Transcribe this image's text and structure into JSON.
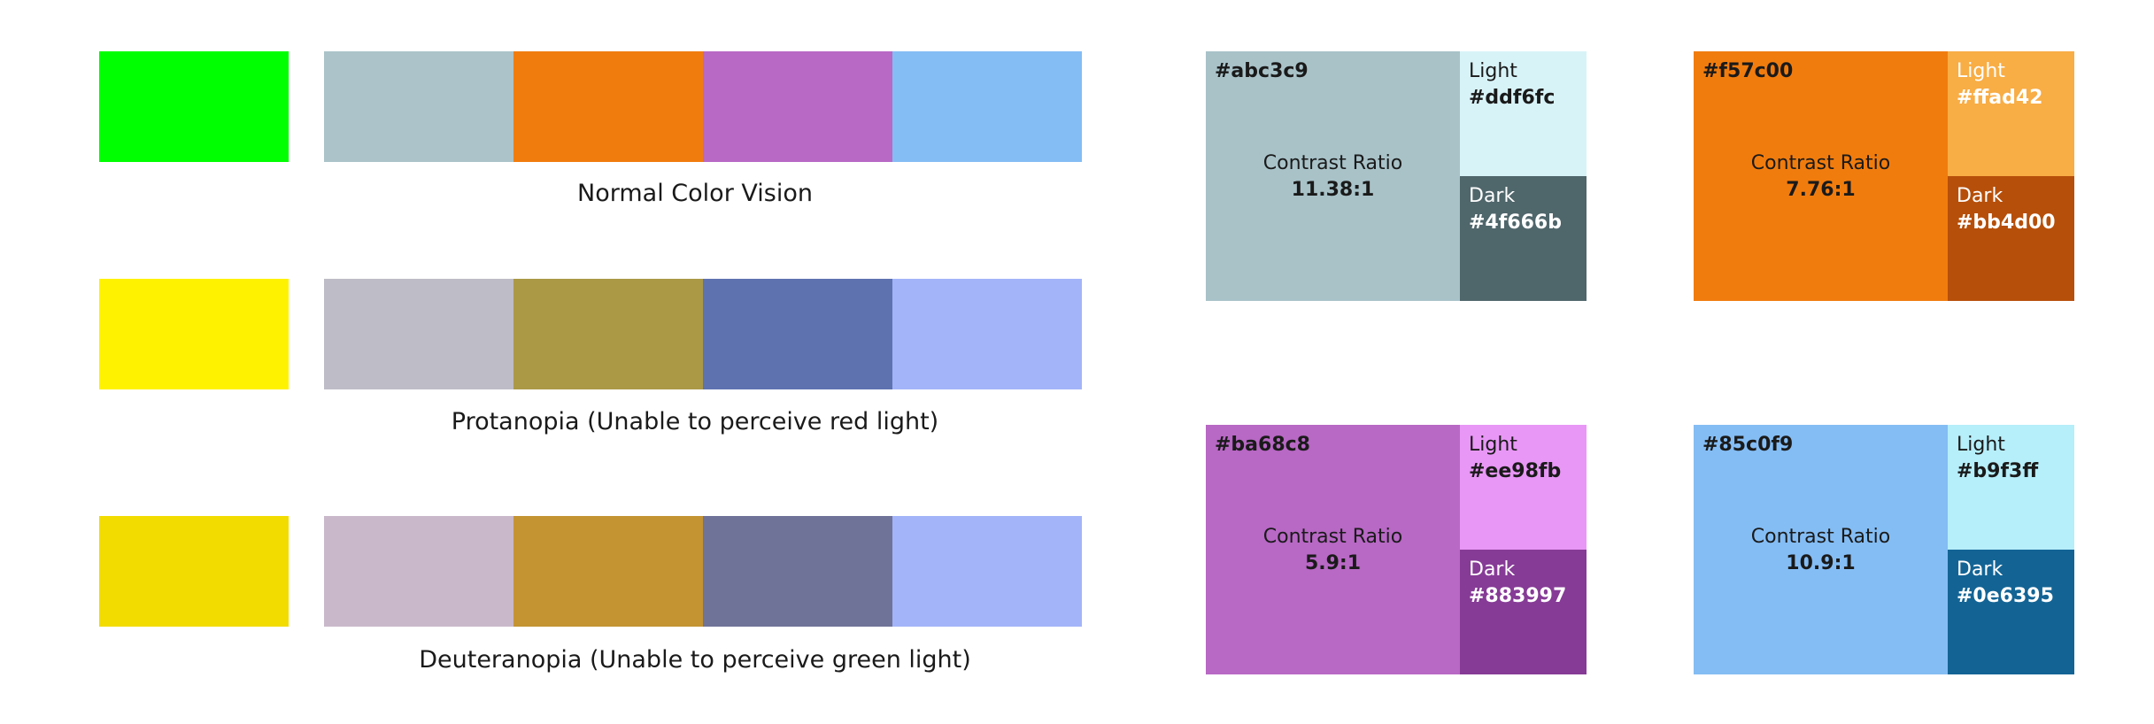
{
  "rows": [
    {
      "label": "Normal Color Vision",
      "accent": "#00ff00",
      "palette": [
        "#abc3c9",
        "#f17c0e",
        "#b868c5",
        "#84bdf4"
      ]
    },
    {
      "label": "Protanopia (Unable to perceive red light)",
      "accent": "#fff200",
      "palette": [
        "#bebcc6",
        "#ab9946",
        "#5e72b0",
        "#a3b4f8"
      ]
    },
    {
      "label": "Deuteranopia (Unable to perceive green light)",
      "accent": "#f2dc00",
      "palette": [
        "#c9b8ca",
        "#c49432",
        "#707398",
        "#a3b4f8"
      ]
    }
  ],
  "cards": [
    {
      "main_hex": "#abc3c9",
      "main_color": "#a8c2c8",
      "ratio_label": "Contrast Ratio",
      "ratio": "11.38:1",
      "light_label": "Light",
      "light_hex": "#ddf6fc",
      "light_color": "#d8f3f8",
      "dark_label": "Dark",
      "dark_hex": "#4f666b",
      "dark_color": "#4f666b",
      "main_text": "#1a1a1a",
      "light_text": "#1a1a1a",
      "dark_text": "#ffffff"
    },
    {
      "main_hex": "#f57c00",
      "main_color": "#f17c0e",
      "ratio_label": "Contrast Ratio",
      "ratio": "7.76:1",
      "light_label": "Light",
      "light_hex": "#ffad42",
      "light_color": "#f8ad45",
      "dark_label": "Dark",
      "dark_hex": "#bb4d00",
      "dark_color": "#b64f0a",
      "main_text": "#1a1a1a",
      "light_text": "#ffffff",
      "dark_text": "#ffffff"
    },
    {
      "main_hex": "#ba68c8",
      "main_color": "#b868c5",
      "ratio_label": "Contrast Ratio",
      "ratio": "5.9:1",
      "light_label": "Light",
      "light_hex": "#ee98fb",
      "light_color": "#e897f6",
      "dark_label": "Dark",
      "dark_hex": "#883997",
      "dark_color": "#863b96",
      "main_text": "#1a1a1a",
      "light_text": "#1a1a1a",
      "dark_text": "#ffffff"
    },
    {
      "main_hex": "#85c0f9",
      "main_color": "#84bdf4",
      "ratio_label": "Contrast Ratio",
      "ratio": "10.9:1",
      "light_label": "Light",
      "light_hex": "#b9f3ff",
      "light_color": "#b6eef9",
      "dark_label": "Dark",
      "dark_hex": "#0e6395",
      "dark_color": "#136495",
      "main_text": "#1a1a1a",
      "light_text": "#1a1a1a",
      "dark_text": "#ffffff"
    }
  ]
}
